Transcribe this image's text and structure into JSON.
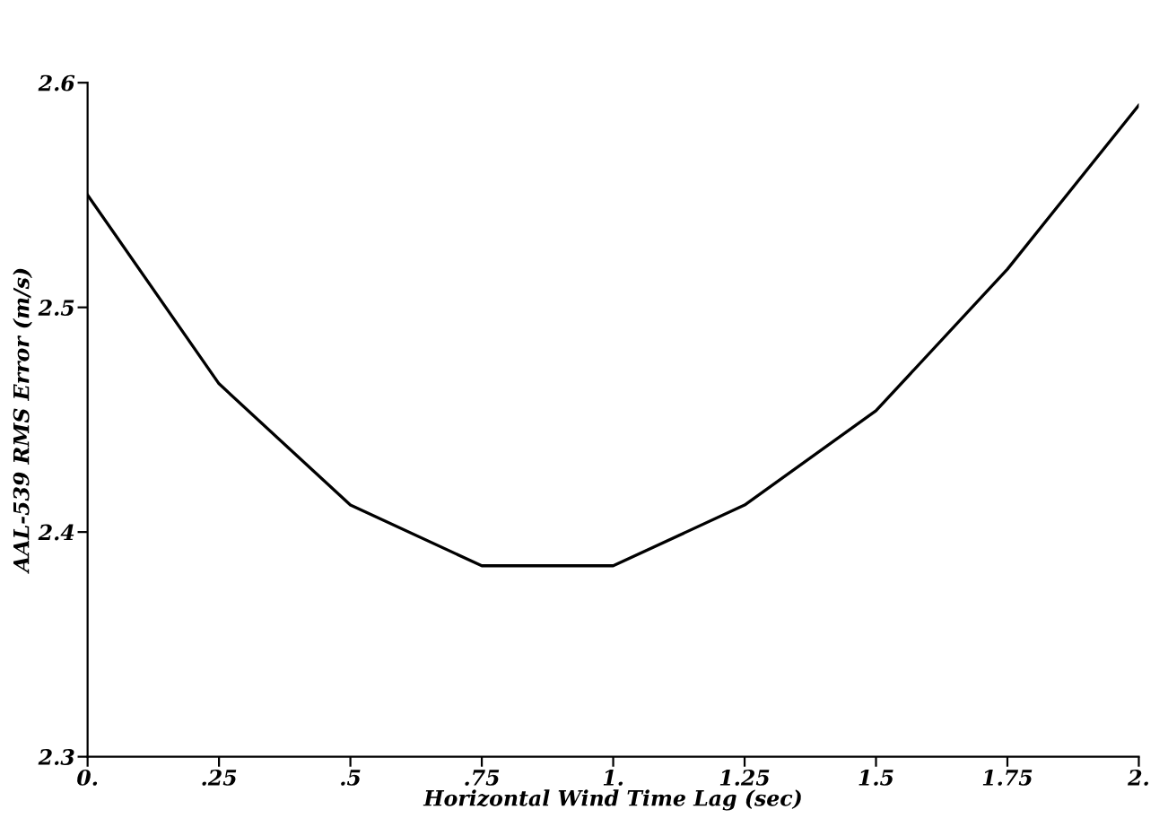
{
  "chart_data": {
    "type": "line",
    "xlabel": "Horizontal Wind Time Lag (sec)",
    "ylabel": "AAL-539 RMS Error (m/s)",
    "x": [
      0,
      0.25,
      0.5,
      0.75,
      1.0,
      1.25,
      1.5,
      1.75,
      2.0
    ],
    "series": [
      {
        "color": "#000000",
        "values": [
          2.55,
          2.466,
          2.412,
          2.385,
          2.385,
          2.412,
          2.454,
          2.517,
          2.59
        ]
      }
    ],
    "xlim": [
      0,
      2
    ],
    "ylim": [
      2.3,
      2.6
    ],
    "xticks": [
      {
        "value": 0,
        "label": "0."
      },
      {
        "value": 0.25,
        "label": ".25"
      },
      {
        "value": 0.5,
        "label": ".5"
      },
      {
        "value": 0.75,
        "label": ".75"
      },
      {
        "value": 1,
        "label": "1."
      },
      {
        "value": 1.25,
        "label": "1.25"
      },
      {
        "value": 1.5,
        "label": "1.5"
      },
      {
        "value": 1.75,
        "label": "1.75"
      },
      {
        "value": 2,
        "label": "2."
      }
    ],
    "yticks": [
      2.3,
      2.4,
      2.5,
      2.6
    ],
    "grid": false,
    "legend": false,
    "marker": "none",
    "line_style": "solid"
  }
}
